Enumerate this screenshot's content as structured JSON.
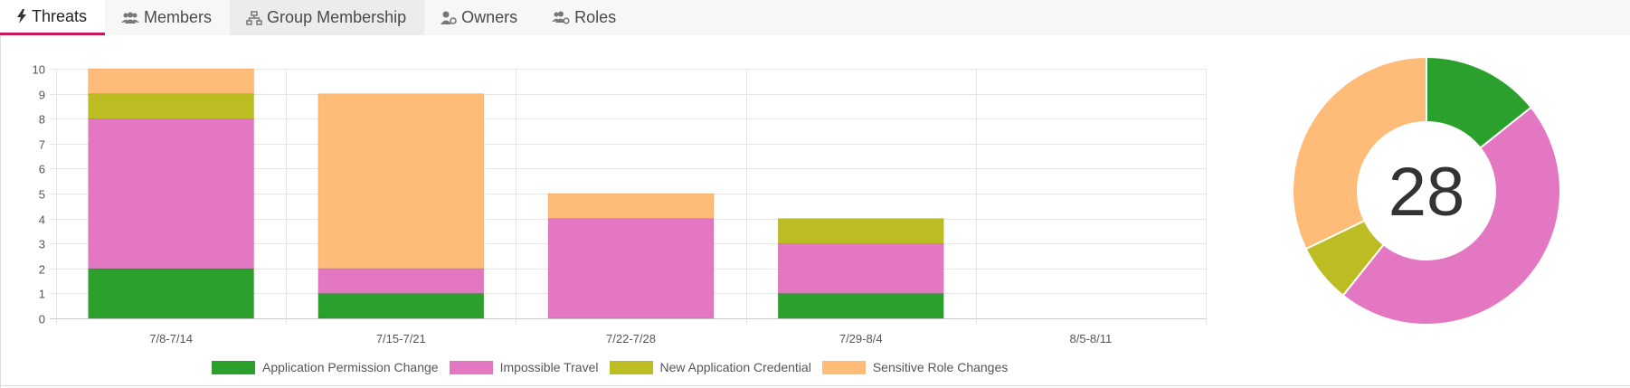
{
  "tabs": [
    {
      "label": "Threats",
      "icon": "bolt-icon",
      "active": true
    },
    {
      "label": "Members",
      "icon": "users-icon",
      "active": false
    },
    {
      "label": "Group Membership",
      "icon": "sitemap-icon",
      "active": false
    },
    {
      "label": "Owners",
      "icon": "user-cog-icon",
      "active": false
    },
    {
      "label": "Roles",
      "icon": "users-cog-icon",
      "active": false
    }
  ],
  "colors": {
    "Application Permission Change": "#2ca02c",
    "Impossible Travel": "#e377c2",
    "New Application Credential": "#bcbd22",
    "Sensitive Role Changes": "#ffbb78",
    "grid": "#e6e6e6",
    "axis": "#cccccc",
    "tab_active_border": "#c71a5a"
  },
  "chart_data": [
    {
      "type": "bar",
      "stacked": true,
      "categories": [
        "7/8-7/14",
        "7/15-7/21",
        "7/22-7/28",
        "7/29-8/4",
        "8/5-8/11"
      ],
      "series": [
        {
          "name": "Application Permission Change",
          "values": [
            2,
            1,
            0,
            1,
            0
          ]
        },
        {
          "name": "Impossible Travel",
          "values": [
            6,
            1,
            4,
            2,
            0
          ]
        },
        {
          "name": "New Application Credential",
          "values": [
            1,
            0,
            0,
            1,
            0
          ]
        },
        {
          "name": "Sensitive Role Changes",
          "values": [
            1,
            7,
            1,
            0,
            0
          ]
        }
      ],
      "ylim": [
        0,
        10
      ],
      "yticks": [
        "0",
        "1",
        "2",
        "3",
        "4",
        "5",
        "6",
        "7",
        "8",
        "9",
        "10"
      ],
      "grid": true,
      "legend": "bottom"
    },
    {
      "type": "pie",
      "donut": true,
      "center_label": "28",
      "slices": [
        {
          "name": "Application Permission Change",
          "value": 4
        },
        {
          "name": "Impossible Travel",
          "value": 13
        },
        {
          "name": "New Application Credential",
          "value": 2
        },
        {
          "name": "Sensitive Role Changes",
          "value": 9
        }
      ]
    }
  ]
}
